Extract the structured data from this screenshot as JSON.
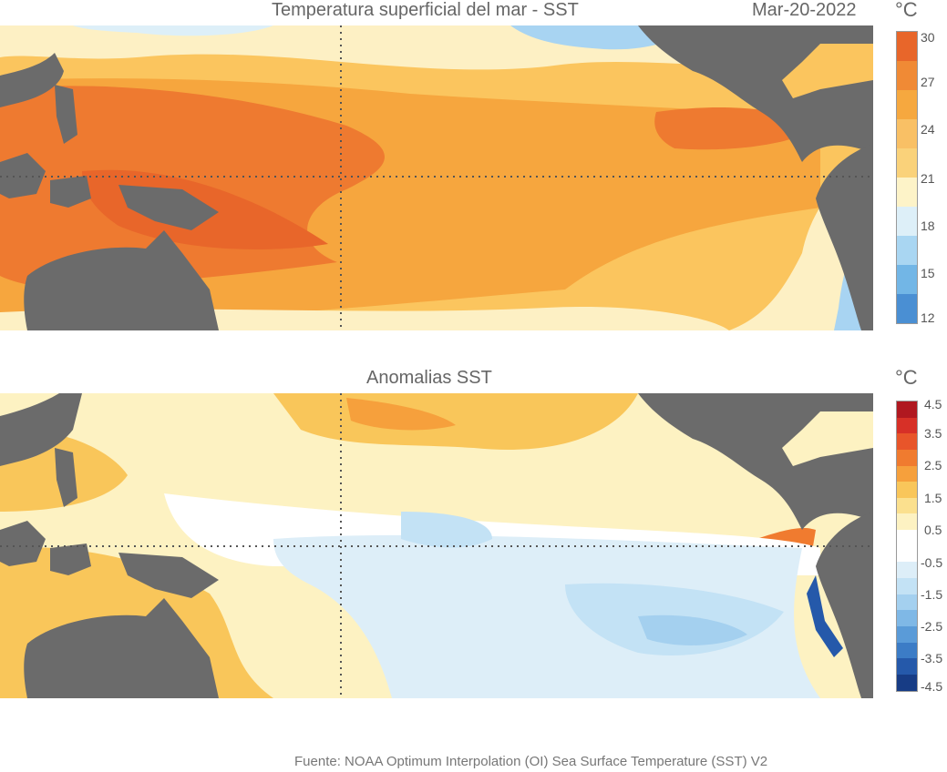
{
  "top_panel": {
    "title": "Temperatura superficial del mar - SST",
    "date": "Mar-20-2022",
    "unit": "°C",
    "colorbar": {
      "tick_labels": [
        "30",
        "27",
        "24",
        "21",
        "18",
        "15",
        "12"
      ],
      "colors": [
        "#e8662a",
        "#f08a35",
        "#f6a83f",
        "#fad27a",
        "#fdf3c8",
        "#fffcec",
        "#ddeff8",
        "#a9d6f2",
        "#72b6e6",
        "#4a8fd3"
      ]
    }
  },
  "bottom_panel": {
    "title": "Anomalias SST",
    "unit": "°C",
    "colorbar": {
      "tick_labels": [
        "4.5",
        "3.5",
        "2.5",
        "1.5",
        "0.5",
        "-0.5",
        "-1.5",
        "-2.5",
        "-3.5",
        "-4.5"
      ],
      "colors": [
        "#b01820",
        "#d73027",
        "#e8552a",
        "#f07b2f",
        "#f6a03c",
        "#f9c65a",
        "#fbe08e",
        "#fdf2c2",
        "#ffffff",
        "#ffffff",
        "#ddeef8",
        "#c3e2f5",
        "#a4d0ef",
        "#7fb8e6",
        "#5a9bd8",
        "#3c7cc6",
        "#2559aa",
        "#173c85"
      ]
    }
  },
  "colors": {
    "land": "#6b6b6b",
    "warm_pool": "#ee7a30",
    "warm": "#f6a63e",
    "mild": "#fbc55e",
    "cool_light": "#fdf0c4",
    "cold": "#a8d4f2",
    "gridline": "#555555"
  },
  "source": "Fuente: NOAA Optimum Interpolation (OI) Sea Surface Temperature (SST) V2"
}
